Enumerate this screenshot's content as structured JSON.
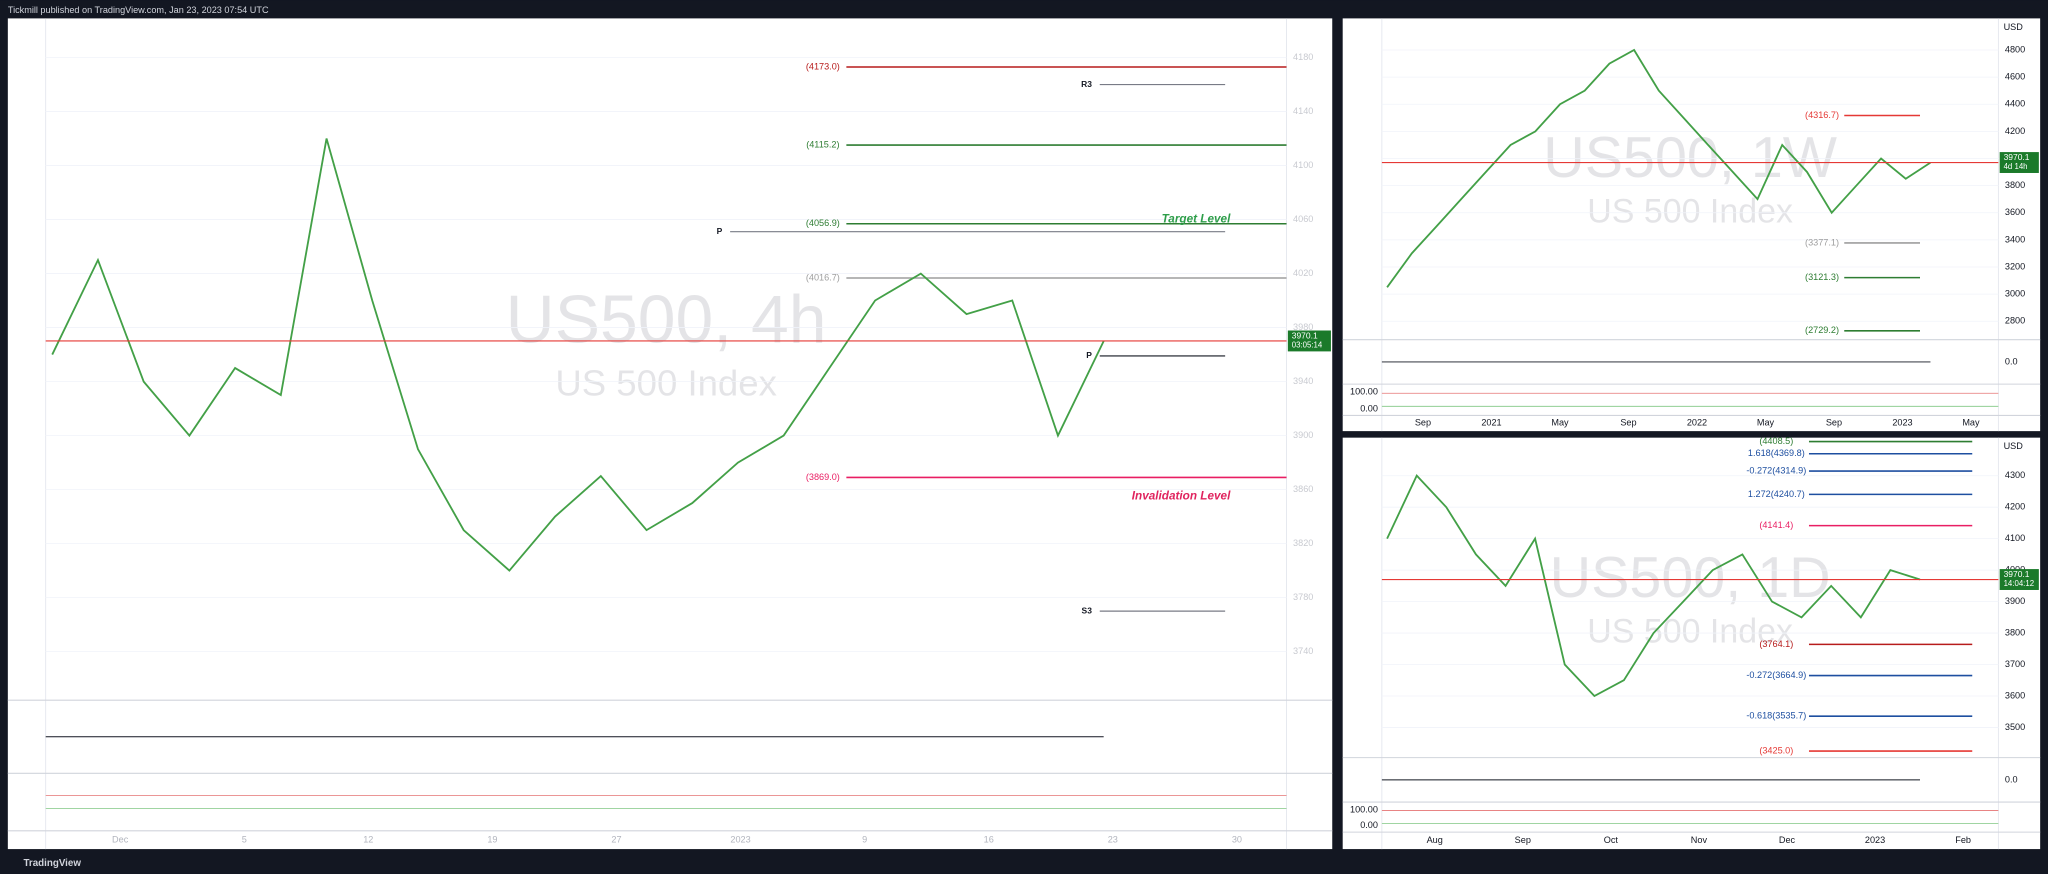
{
  "header": "Tickmill published on TradingView.com, Jan 23, 2023 07:54 UTC",
  "footer": "TradingView",
  "chart_data": [
    {
      "type": "line",
      "title": "US500, 4h",
      "subtitle": "US 500 Index",
      "ylim": [
        3705,
        4209
      ],
      "yticks": [
        4180,
        4140,
        4100,
        4060,
        4020,
        3980,
        3940,
        3900,
        3860,
        3820,
        3780,
        3740
      ],
      "x_labels": [
        "Dec",
        "5",
        "12",
        "19",
        "27",
        "2023",
        "9",
        "16",
        "23",
        "30"
      ],
      "color": "#43a047",
      "values": [
        3960,
        4030,
        3940,
        3900,
        3950,
        3930,
        4120,
        4000,
        3890,
        3830,
        3800,
        3840,
        3870,
        3830,
        3850,
        3880,
        3900,
        3950,
        4000,
        4020,
        3990,
        4000,
        3900,
        3970
      ],
      "levels": [
        {
          "label": "(4173.0)",
          "value": 4173.0,
          "color": "#b71c1c"
        },
        {
          "label": "(4115.2)",
          "value": 4115.2,
          "color": "#2e7d32"
        },
        {
          "label": "(4056.9)",
          "value": 4056.9,
          "color": "#2e7d32"
        },
        {
          "label": "(4016.7)",
          "value": 4016.7,
          "color": "#9e9e9e"
        },
        {
          "label": "(3869.0)",
          "value": 3869.0,
          "color": "#e91e63"
        }
      ],
      "pivots": [
        {
          "label": "R3",
          "value": 4160
        },
        {
          "label": "P",
          "value": 4051
        },
        {
          "label": "P",
          "value": 3959
        },
        {
          "label": "S3",
          "value": 3770
        }
      ],
      "annotations": [
        {
          "label": "Target Level",
          "value": 4060,
          "color": "#2e9e4a"
        },
        {
          "label": "Invalidation Level",
          "value": 3855,
          "color": "#e0245e"
        }
      ],
      "price": 3970.1,
      "countdown": "03:05:14"
    },
    {
      "type": "line",
      "title": "US500, 1W",
      "subtitle": "US 500 Index",
      "currency": "USD",
      "ylim": [
        2683,
        5033
      ],
      "yticks": [
        4800,
        4600,
        4400,
        4200,
        4000,
        3800,
        3600,
        3400,
        3200,
        3000,
        2800
      ],
      "x_labels": [
        "Sep",
        "2021",
        "May",
        "Sep",
        "2022",
        "May",
        "Sep",
        "2023",
        "May"
      ],
      "color": "#43a047",
      "values": [
        3050,
        3300,
        3500,
        3700,
        3900,
        4100,
        4200,
        4400,
        4500,
        4700,
        4800,
        4500,
        4300,
        4100,
        3900,
        3700,
        4100,
        3900,
        3600,
        3800,
        4000,
        3850,
        3970
      ],
      "levels": [
        {
          "label": "(4316.7)",
          "value": 4316.7,
          "color": "#e53935"
        },
        {
          "label": "(3377.1)",
          "value": 3377.1,
          "color": "#9e9e9e"
        },
        {
          "label": "(3121.3)",
          "value": 3121.3,
          "color": "#2e7d32"
        },
        {
          "label": "(2729.2)",
          "value": 2729.2,
          "color": "#2e7d32"
        }
      ],
      "osc_labels": [
        "0.0",
        "100.00",
        "0.00"
      ],
      "price": 3970.1,
      "countdown": "4d 14h"
    },
    {
      "type": "line",
      "title": "US500, 1D",
      "subtitle": "US 500 Index",
      "currency": "USD",
      "ylim": [
        3404,
        4421
      ],
      "yticks": [
        4300,
        4200,
        4100,
        4000,
        3900,
        3800,
        3700,
        3600,
        3500
      ],
      "x_labels": [
        "Aug",
        "Sep",
        "Oct",
        "Nov",
        "Dec",
        "2023",
        "Feb"
      ],
      "color": "#43a047",
      "values": [
        4100,
        4300,
        4200,
        4050,
        3950,
        4100,
        3700,
        3600,
        3650,
        3800,
        3900,
        4000,
        4050,
        3900,
        3850,
        3950,
        3850,
        4000,
        3970
      ],
      "levels": [
        {
          "label": "(4408.5)",
          "value": 4408.5,
          "color": "#2e7d32"
        },
        {
          "label": "1.618(4369.8)",
          "value": 4369.8,
          "color": "#1e4fa0"
        },
        {
          "label": "-0.272(4314.9)",
          "value": 4314.9,
          "color": "#1e4fa0"
        },
        {
          "label": "1.272(4240.7)",
          "value": 4240.7,
          "color": "#1e4fa0"
        },
        {
          "label": "(4141.4)",
          "value": 4141.4,
          "color": "#e91e63"
        },
        {
          "label": "(3764.1)",
          "value": 3764.1,
          "color": "#b71c1c"
        },
        {
          "label": "-0.272(3664.9)",
          "value": 3664.9,
          "color": "#1e4fa0"
        },
        {
          "label": "-0.618(3535.7)",
          "value": 3535.7,
          "color": "#1e4fa0"
        },
        {
          "label": "(3425.0)",
          "value": 3425.0,
          "color": "#e53935"
        }
      ],
      "osc_labels": [
        "0.0",
        "100.00",
        "0.00"
      ],
      "price": 3970.1,
      "countdown": "14:04:12"
    }
  ]
}
